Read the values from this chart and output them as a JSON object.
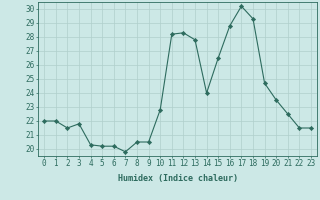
{
  "x": [
    0,
    1,
    2,
    3,
    4,
    5,
    6,
    7,
    8,
    9,
    10,
    11,
    12,
    13,
    14,
    15,
    16,
    17,
    18,
    19,
    20,
    21,
    22,
    23
  ],
  "y": [
    22,
    22,
    21.5,
    21.8,
    20.3,
    20.2,
    20.2,
    19.8,
    20.5,
    20.5,
    22.8,
    28.2,
    28.3,
    27.8,
    24.0,
    26.5,
    28.8,
    30.2,
    29.3,
    24.7,
    23.5,
    22.5,
    21.5,
    21.5
  ],
  "line_color": "#2d6b5e",
  "marker": "D",
  "marker_size": 2.2,
  "bg_color": "#cce8e6",
  "grid_color": "#b0cfcc",
  "xlabel": "Humidex (Indice chaleur)",
  "ylabel_ticks": [
    20,
    21,
    22,
    23,
    24,
    25,
    26,
    27,
    28,
    29,
    30
  ],
  "xlim": [
    -0.5,
    23.5
  ],
  "ylim": [
    19.5,
    30.5
  ],
  "tick_color": "#2d6b5e",
  "label_fontsize": 6.0,
  "tick_fontsize": 5.5
}
